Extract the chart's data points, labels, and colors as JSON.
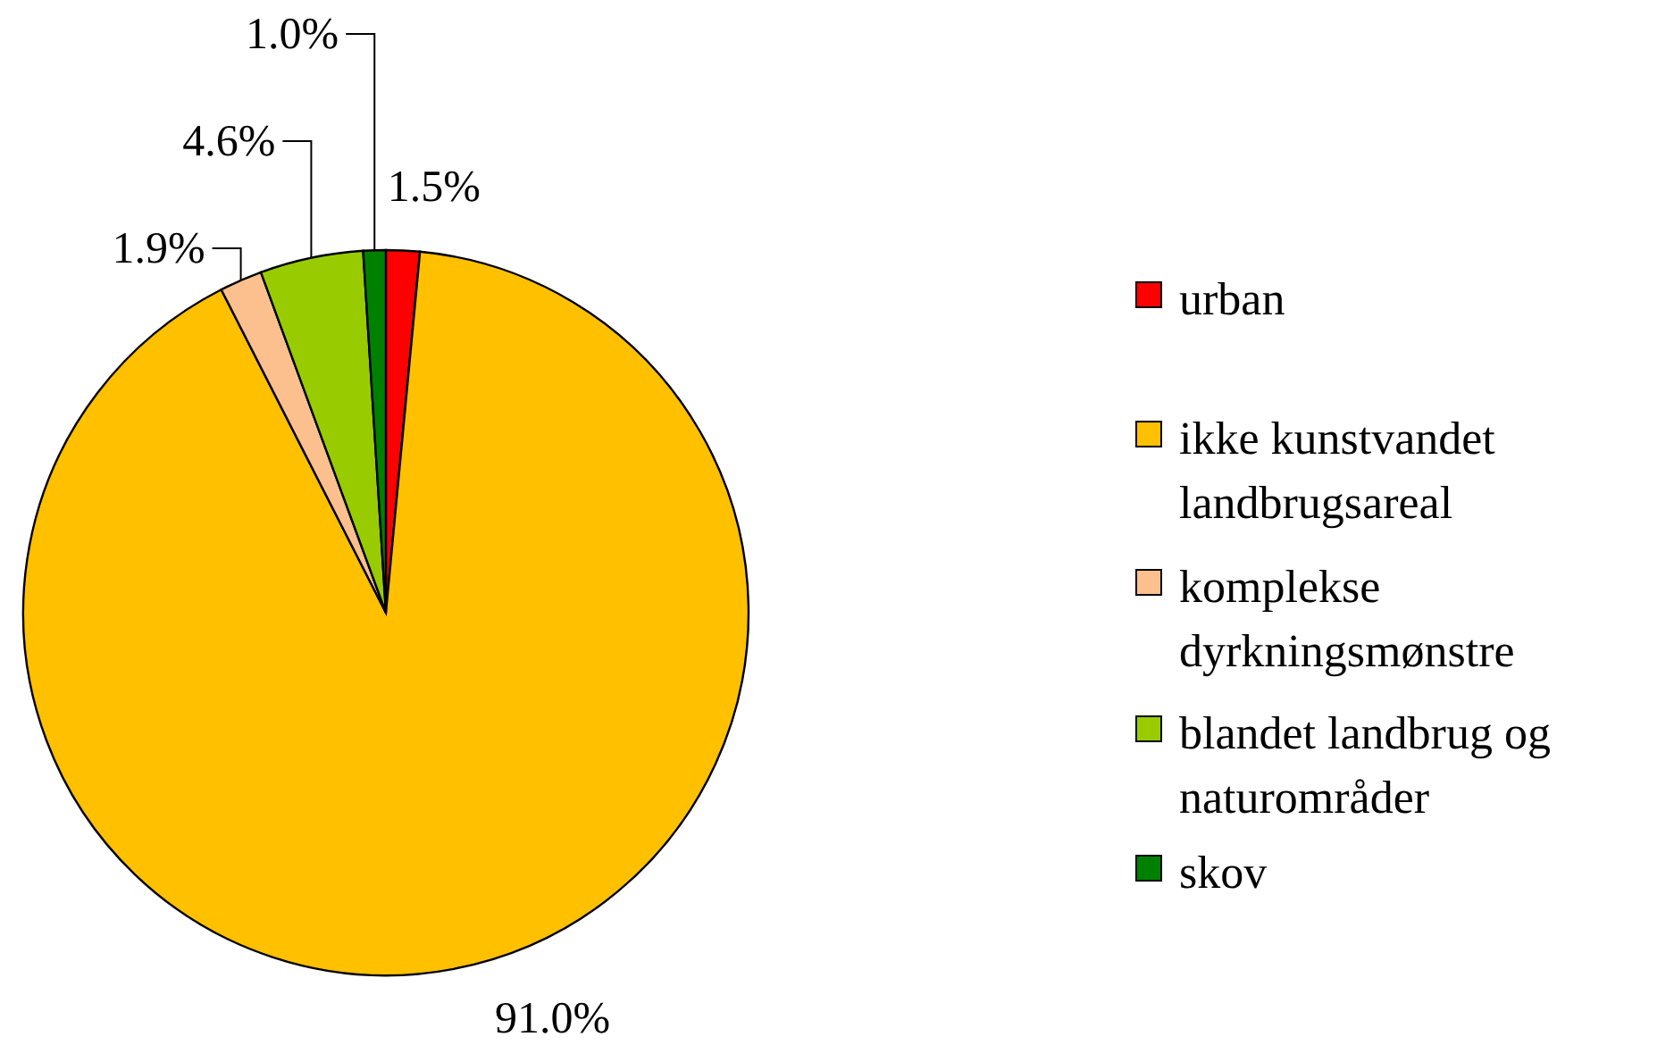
{
  "chart_data": {
    "type": "pie",
    "categories": [
      "urban",
      "ikke kunstvandet landbrugsareal",
      "komplekse dyrkningsmønstre",
      "blandet landbrug og naturområder",
      "skov"
    ],
    "values": [
      1.5,
      91.0,
      1.9,
      4.6,
      1.0
    ],
    "colors": [
      "#ff0000",
      "#ffc000",
      "#fbc08e",
      "#99cc00",
      "#008000"
    ],
    "value_labels": [
      "1.5%",
      "91.0%",
      "1.9%",
      "4.6%",
      "1.0%"
    ],
    "legend": "right"
  }
}
